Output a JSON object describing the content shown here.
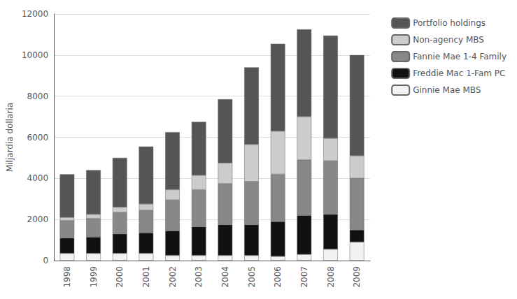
{
  "chart_data": {
    "type": "bar",
    "stacked": true,
    "categories": [
      "1998",
      "1999",
      "2000",
      "2001",
      "2002",
      "2003",
      "2004",
      "2005",
      "2006",
      "2007",
      "2008",
      "2009"
    ],
    "series": [
      {
        "name": "Ginnie Mae MBS",
        "color": "#f2f2f2",
        "values": [
          350,
          350,
          350,
          350,
          250,
          250,
          250,
          250,
          200,
          300,
          550,
          900
        ]
      },
      {
        "name": "Freddie Mac 1-Fam PC",
        "color": "#111111",
        "values": [
          750,
          800,
          950,
          1000,
          1200,
          1400,
          1500,
          1500,
          1700,
          1900,
          1700,
          600
        ]
      },
      {
        "name": "Fannie Mae 1-4 Family",
        "color": "#888888",
        "values": [
          850,
          900,
          1050,
          1100,
          1500,
          1800,
          2000,
          2100,
          2300,
          2700,
          2600,
          2500
        ]
      },
      {
        "name": "Non-agency MBS",
        "color": "#cccccc",
        "values": [
          150,
          200,
          250,
          300,
          500,
          700,
          1000,
          1800,
          2100,
          2100,
          1100,
          1100
        ]
      },
      {
        "name": "Portfolio holdings",
        "color": "#555555",
        "values": [
          2100,
          2150,
          2400,
          2800,
          2800,
          2600,
          3100,
          3750,
          4250,
          4250,
          5000,
          4900
        ]
      }
    ],
    "ylabel": "Miljardia dollaria",
    "ylim": [
      0,
      12000
    ],
    "yticks": [
      0,
      2000,
      4000,
      6000,
      8000,
      10000,
      12000
    ],
    "grid": true,
    "legend": "right"
  }
}
